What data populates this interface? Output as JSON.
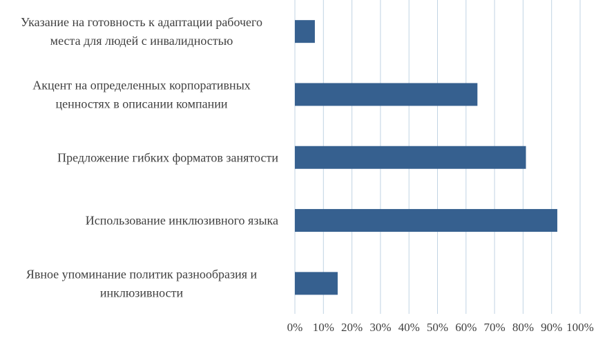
{
  "chart_data": {
    "type": "bar",
    "orientation": "horizontal",
    "categories": [
      [
        "Указание на готовность к адаптации рабочего",
        "места для людей с инвалидностью"
      ],
      [
        "Акцент на определенных корпоративных",
        "ценностях в описании компании"
      ],
      [
        "Предложение гибких форматов занятости"
      ],
      [
        "Использование инклюзивного языка"
      ],
      [
        "Явное упоминание политик разнообразия и",
        "инклюзивности"
      ]
    ],
    "values": [
      7,
      64,
      81,
      92,
      15
    ],
    "xlim": [
      0,
      100
    ],
    "xticks": [
      "0%",
      "10%",
      "20%",
      "30%",
      "40%",
      "50%",
      "60%",
      "70%",
      "80%",
      "90%",
      "100%"
    ],
    "title": "",
    "xlabel": "",
    "ylabel": "",
    "grid": "vertical",
    "legend": "none",
    "colors": {
      "bar": "#36608f",
      "grid": "#c0d3e3",
      "text": "#404040"
    }
  }
}
